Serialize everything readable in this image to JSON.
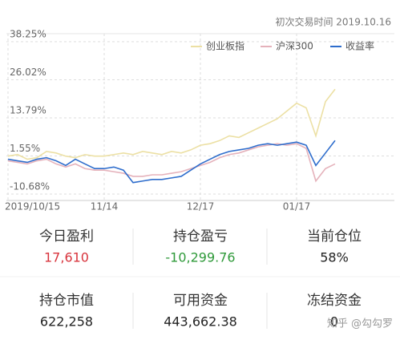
{
  "header": {
    "first_trade": "初次交易时间 2019.10.16"
  },
  "chart_data": {
    "type": "line",
    "categories": [
      "2019/10/15",
      null,
      null,
      null,
      null,
      null,
      null,
      null,
      null,
      null,
      "11/14",
      null,
      null,
      null,
      null,
      null,
      null,
      null,
      null,
      null,
      "12/17",
      null,
      null,
      null,
      null,
      null,
      null,
      null,
      null,
      null,
      "01/17",
      null,
      null,
      null,
      null
    ],
    "series": [
      {
        "name": "创业板指",
        "color": "#ece0a4",
        "values": [
          1.5,
          2.0,
          0.5,
          1.0,
          3.0,
          2.5,
          1.5,
          1.0,
          2.0,
          1.5,
          1.5,
          2.0,
          2.5,
          2.0,
          3.0,
          2.5,
          2.0,
          3.0,
          2.5,
          3.5,
          5.0,
          5.5,
          6.5,
          8.0,
          7.5,
          9.0,
          10.5,
          12.0,
          13.5,
          16.0,
          18.5,
          17.0,
          8.0,
          19.0,
          23.0
        ]
      },
      {
        "name": "沪深300",
        "color": "#e5b2bb",
        "values": [
          0.0,
          -0.5,
          -1.0,
          0.0,
          0.5,
          -1.0,
          -2.0,
          -1.0,
          -2.5,
          -3.0,
          -3.0,
          -3.5,
          -4.0,
          -5.0,
          -5.0,
          -4.5,
          -4.5,
          -4.0,
          -3.5,
          -2.5,
          -1.5,
          -0.5,
          1.0,
          2.0,
          2.5,
          3.5,
          4.5,
          5.0,
          5.5,
          5.0,
          5.5,
          4.0,
          -6.5,
          -2.5,
          -1.0
        ]
      },
      {
        "name": "收益率",
        "color": "#2e6dcc",
        "values": [
          0.5,
          0.0,
          -0.5,
          0.5,
          1.0,
          0.0,
          -1.5,
          0.5,
          -1.0,
          -2.5,
          -2.5,
          -2.0,
          -3.0,
          -7.0,
          -6.5,
          -6.0,
          -6.0,
          -5.5,
          -5.0,
          -3.0,
          -1.0,
          0.5,
          2.0,
          3.0,
          3.5,
          4.0,
          5.0,
          5.5,
          5.0,
          5.5,
          6.0,
          5.0,
          -1.5,
          2.5,
          6.5
        ]
      }
    ],
    "ylim": [
      -10.68,
      38.25
    ],
    "yticks": [
      {
        "value": 38.25,
        "label": "38.25%"
      },
      {
        "value": 26.02,
        "label": "26.02%"
      },
      {
        "value": 13.79,
        "label": "13.79%"
      },
      {
        "value": 1.55,
        "label": "1.55%"
      },
      {
        "value": -10.68,
        "label": "-10.68%"
      }
    ],
    "grid": true,
    "legend": "top-right"
  },
  "stats": [
    {
      "label": "今日盈利",
      "value": "17,610",
      "color": "#d8343d"
    },
    {
      "label": "持仓盈亏",
      "value": "-10,299.76",
      "color": "#2f9a3a"
    },
    {
      "label": "当前仓位",
      "value": "58%",
      "color": "#222222"
    },
    {
      "label": "持仓市值",
      "value": "622,258",
      "color": "#222222"
    },
    {
      "label": "可用资金",
      "value": "443,662.38",
      "color": "#222222"
    },
    {
      "label": "冻结资金",
      "value": "0",
      "color": "#222222"
    }
  ],
  "watermark": "知乎 @勾勾罗"
}
